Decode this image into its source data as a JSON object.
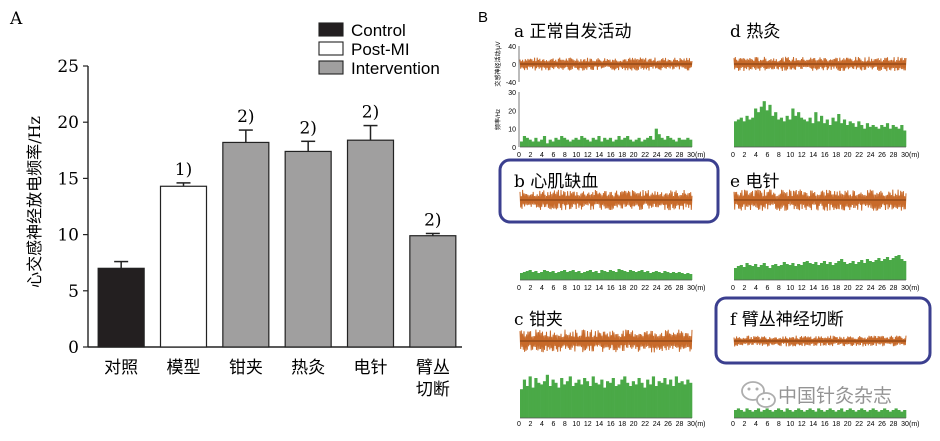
{
  "panel_a": {
    "label": "A",
    "ylabel": "心交感神经放电频率/Hz",
    "chart_data": {
      "type": "bar",
      "categories": [
        "对照",
        "模型",
        "钳夹",
        "热灸",
        "电针",
        "臂丛\n切断"
      ],
      "values": [
        7.0,
        14.3,
        18.2,
        17.4,
        18.4,
        9.9
      ],
      "errors": [
        0.6,
        0.3,
        1.1,
        0.9,
        1.3,
        0.2
      ],
      "group": [
        "Control",
        "Post-MI",
        "Intervention",
        "Intervention",
        "Intervention",
        "Intervention"
      ],
      "annotations": [
        "",
        "1)",
        "2)",
        "2)",
        "2)",
        "2)"
      ],
      "ylim": [
        0,
        25
      ],
      "yticks": [
        0,
        5,
        10,
        15,
        20,
        25
      ],
      "legend": [
        {
          "name": "Control",
          "color": "#231f20"
        },
        {
          "name": "Post-MI",
          "color": "#ffffff"
        },
        {
          "name": "Intervention",
          "color": "#a09f9f"
        }
      ],
      "legend_position": "top-right",
      "grid": false
    }
  },
  "panel_b": {
    "label": "B",
    "colors": {
      "trace": "#c86a2a",
      "hist": "#4aa947",
      "highlight": "#3b3f8f"
    },
    "top_trace_ylabel": "交感神经活动/μV",
    "top_trace_ticks": [
      "40",
      "0",
      "-40"
    ],
    "top_hist_ylabel": "频率/Hz",
    "top_hist_ticks": [
      "30",
      "20",
      "10",
      "0"
    ],
    "x_ticks": [
      "0",
      "2",
      "4",
      "6",
      "8",
      "10",
      "12",
      "14",
      "16",
      "18",
      "20",
      "22",
      "24",
      "26",
      "28",
      "30"
    ],
    "x_unit": "(m)",
    "subpanels": [
      {
        "title": "a 正常自发活动",
        "highlight": false,
        "amp": 0.55,
        "hist": [
          3,
          6,
          5,
          4,
          3,
          5,
          3,
          4,
          6,
          2,
          4,
          3,
          5,
          4,
          6,
          5,
          4,
          3,
          4,
          5,
          4,
          6,
          5,
          4,
          3,
          5,
          4,
          6,
          3,
          5,
          4,
          5,
          3,
          4,
          6,
          4,
          5,
          6,
          4,
          3,
          4,
          5,
          3,
          4,
          5,
          6,
          4,
          10,
          7,
          5,
          4,
          6,
          5,
          4,
          3,
          5,
          4,
          4,
          5,
          4
        ]
      },
      {
        "title": "d 热灸",
        "highlight": false,
        "amp": 0.6,
        "hist": [
          14,
          15,
          16,
          14,
          17,
          15,
          16,
          21,
          19,
          22,
          25,
          20,
          23,
          17,
          19,
          15,
          16,
          14,
          17,
          15,
          21,
          17,
          19,
          16,
          15,
          14,
          16,
          13,
          19,
          14,
          17,
          13,
          15,
          12,
          16,
          14,
          18,
          13,
          15,
          12,
          14,
          13,
          11,
          14,
          12,
          10,
          13,
          11,
          12,
          11,
          10,
          12,
          11,
          13,
          10,
          12,
          11,
          10,
          12,
          9
        ]
      },
      {
        "title": "b 心肌缺血",
        "highlight": true,
        "amp": 0.85,
        "hist": [
          7,
          8,
          9,
          10,
          8,
          9,
          7,
          8,
          10,
          9,
          8,
          9,
          7,
          8,
          9,
          10,
          8,
          9,
          10,
          8,
          9,
          7,
          8,
          9,
          10,
          8,
          9,
          7,
          10,
          9,
          8,
          10,
          9,
          8,
          11,
          10,
          9,
          8,
          10,
          9,
          8,
          9,
          10,
          8,
          9,
          7,
          8,
          9,
          8,
          7,
          9,
          8,
          7,
          8,
          7,
          8,
          7,
          6,
          7,
          6
        ]
      },
      {
        "title": "e 电针",
        "highlight": false,
        "amp": 0.9,
        "hist": [
          12,
          14,
          15,
          13,
          17,
          15,
          14,
          16,
          13,
          15,
          17,
          14,
          12,
          15,
          16,
          14,
          15,
          18,
          16,
          15,
          17,
          14,
          16,
          15,
          18,
          19,
          17,
          16,
          18,
          15,
          17,
          19,
          16,
          18,
          15,
          17,
          19,
          21,
          18,
          16,
          17,
          19,
          16,
          18,
          20,
          17,
          21,
          19,
          18,
          20,
          22,
          19,
          21,
          23,
          20,
          22,
          24,
          25,
          21,
          19
        ]
      },
      {
        "title": "c 钳夹",
        "highlight": false,
        "amp": 0.95,
        "hist": [
          18,
          24,
          20,
          26,
          19,
          25,
          22,
          21,
          23,
          27,
          20,
          24,
          22,
          19,
          25,
          21,
          23,
          26,
          20,
          22,
          24,
          21,
          25,
          23,
          20,
          26,
          22,
          21,
          24,
          19,
          23,
          22,
          25,
          20,
          21,
          24,
          26,
          22,
          20,
          23,
          21,
          25,
          22,
          19,
          24,
          21,
          26,
          20,
          23,
          22,
          25,
          21,
          24,
          20,
          26,
          22,
          23,
          21,
          24,
          22
        ]
      },
      {
        "title": "f 臂丛神经切断",
        "highlight": true,
        "amp": 0.45,
        "hist": [
          5,
          6,
          5,
          4,
          6,
          5,
          4,
          5,
          6,
          4,
          5,
          6,
          5,
          4,
          5,
          6,
          5,
          4,
          6,
          5,
          4,
          5,
          6,
          5,
          4,
          5,
          6,
          5,
          4,
          6,
          5,
          4,
          5,
          6,
          5,
          4,
          5,
          6,
          4,
          5,
          6,
          5,
          4,
          5,
          6,
          5,
          4,
          5,
          6,
          5,
          4,
          5,
          6,
          5,
          4,
          5,
          6,
          5,
          4,
          5
        ]
      }
    ],
    "watermark": "中国针灸杂志",
    "watermark_icon": "wechat-icon"
  }
}
